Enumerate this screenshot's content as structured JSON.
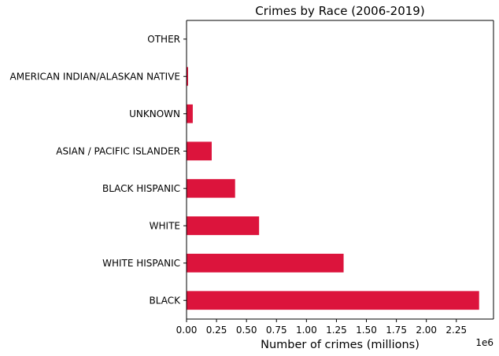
{
  "chart_data": {
    "type": "bar",
    "orientation": "horizontal",
    "title": "Crimes by Race (2006-2019)",
    "xlabel": "Number of crimes (millions)",
    "ylabel": "",
    "x_offset_label": "1e6",
    "categories": [
      "BLACK",
      "WHITE HISPANIC",
      "WHITE",
      "BLACK HISPANIC",
      "ASIAN / PACIFIC ISLANDER",
      "UNKNOWN",
      "AMERICAN INDIAN/ALASKAN NATIVE",
      "OTHER"
    ],
    "values": [
      2440000,
      1310000,
      605000,
      405000,
      210000,
      52000,
      13000,
      1500
    ],
    "xlim": [
      0,
      2560000
    ],
    "xticks": [
      0,
      250000,
      500000,
      750000,
      1000000,
      1250000,
      1500000,
      1750000,
      2000000,
      2250000
    ],
    "xtick_labels": [
      "0.00",
      "0.25",
      "0.50",
      "0.75",
      "1.00",
      "1.25",
      "1.50",
      "1.75",
      "2.00",
      "2.25"
    ],
    "bar_color": "#dc143c",
    "grid": false,
    "legend": "none"
  }
}
